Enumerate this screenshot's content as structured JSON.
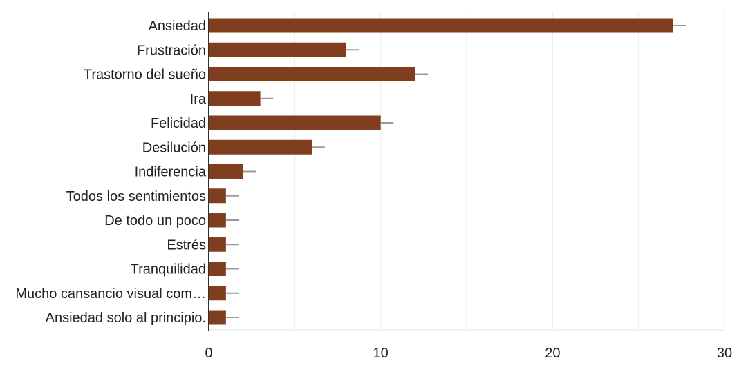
{
  "chart_data": {
    "type": "bar",
    "orientation": "horizontal",
    "categories": [
      "Ansiedad",
      "Frustración",
      "Trastorno del sueño",
      "Ira",
      "Felicidad",
      "Desilución",
      "Indiferencia",
      "Todos los sentimientos",
      "De todo un poco",
      "Estrés",
      "Tranquilidad",
      "Mucho cansancio visual com…",
      "Ansiedad solo al principio."
    ],
    "values": [
      27,
      8,
      12,
      3,
      10,
      6,
      2,
      1,
      1,
      1,
      1,
      1,
      1
    ],
    "error_bars": true,
    "xlim": [
      0,
      30
    ],
    "xticks": [
      0,
      10,
      20,
      30
    ],
    "grid": true,
    "bar_color": "#7f3f1e",
    "error_color": "#999999",
    "title": "",
    "xlabel": "",
    "ylabel": ""
  }
}
